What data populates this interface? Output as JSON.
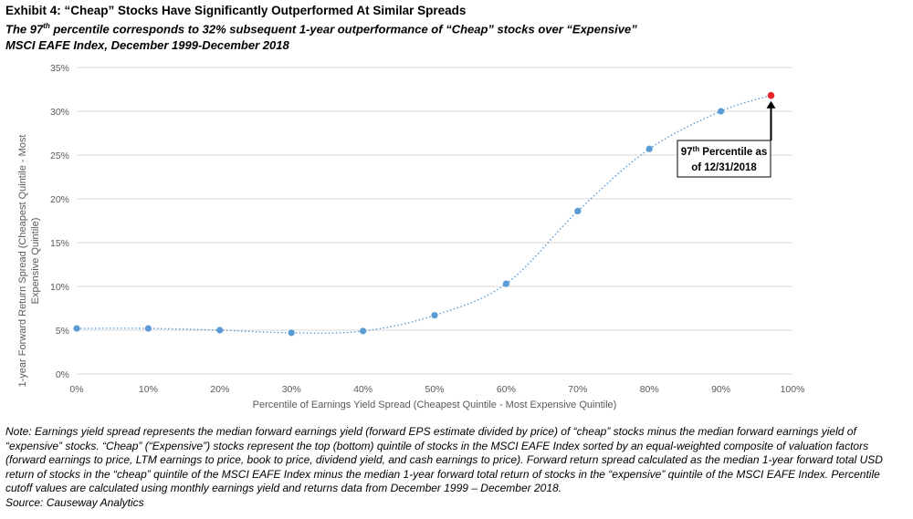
{
  "header": {
    "title": "Exhibit 4: “Cheap” Stocks Have Significantly Outperformed At Similar Spreads",
    "subtitle_pre": "The 97",
    "subtitle_sup": "th",
    "subtitle_post": " percentile corresponds to 32% subsequent 1-year outperformance of “Cheap” stocks over “Expensive”",
    "subtitle2": "MSCI EAFE Index, December 1999-December 2018"
  },
  "chart_data": {
    "type": "scatter",
    "xlabel": "Percentile of Earnings Yield Spread (Cheapest Quintile - Most Expensive Quintile)",
    "ylabel_line1": "1-year Forward Return Spread (Cheapest Quintile - Most",
    "ylabel_line2": "Expensive Quintile)",
    "xlim": [
      0,
      100
    ],
    "ylim": [
      0,
      35
    ],
    "x_ticks": [
      "0%",
      "10%",
      "20%",
      "30%",
      "40%",
      "50%",
      "60%",
      "70%",
      "80%",
      "90%",
      "100%"
    ],
    "y_ticks": [
      "0%",
      "5%",
      "10%",
      "15%",
      "20%",
      "25%",
      "30%",
      "35%"
    ],
    "grid": "horizontal",
    "series": [
      {
        "color": "#5b9bd5",
        "x": [
          0,
          10,
          20,
          30,
          40,
          50,
          60,
          70,
          80,
          90
        ],
        "y": [
          5.2,
          5.2,
          5.0,
          4.7,
          4.9,
          6.7,
          10.3,
          18.6,
          25.7,
          30.0
        ]
      }
    ],
    "highlight": {
      "x": 97,
      "y": 31.8,
      "color": "#e8242a"
    },
    "trendline": {
      "style": "dotted",
      "color": "#5b9bd5"
    },
    "annotation": {
      "line1_pre": "97",
      "line1_sup": "th",
      "line1_post": " Percentile as",
      "line2": "of 12/31/2018"
    }
  },
  "footnote": {
    "note": "Note: Earnings yield spread represents the median forward earnings yield (forward EPS estimate divided by price) of “cheap” stocks minus the median forward earnings yield of “expensive” stocks.  “Cheap” (“Expensive”) stocks represent the top (bottom) quintile of stocks in the MSCI EAFE Index sorted by an equal-weighted composite of valuation factors (forward earnings to price, LTM earnings to price, book to price, dividend yield, and cash earnings to price).  Forward return spread calculated as the median 1-year forward total USD return of stocks in the “cheap” quintile of the MSCI EAFE Index minus the median 1-year forward total return of stocks in the “expensive” quintile of the MSCI EAFE Index.  Percentile cutoff values are calculated using monthly earnings yield and returns data from December 1999 – December 2018.",
    "source": "Source: Causeway Analytics"
  }
}
